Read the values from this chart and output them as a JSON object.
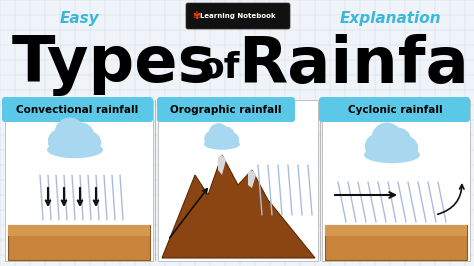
{
  "bg_color": "#f0f4f8",
  "grid_color": "#c8d4e4",
  "easy_text": "Easy",
  "explanation_text": "Explanation",
  "header_color": "#3ab8d8",
  "label_bg_color": "#5bc8e8",
  "label1": "Convectional rainfall",
  "label2": "Orographic rainfall",
  "label3": "Cyclonic rainfall",
  "cloud_color": "#a8d8f0",
  "cloud_dark": "#70b0d8",
  "cloud_outline": "#4898c0",
  "rain_color": "#7090c0",
  "rain_light": "#aabcdc",
  "ground_color": "#c8843a",
  "ground_top": "#d49850",
  "mountain_color": "#8b4513",
  "mountain_snow": "#e8e8e8",
  "arrow_color": "#111111"
}
